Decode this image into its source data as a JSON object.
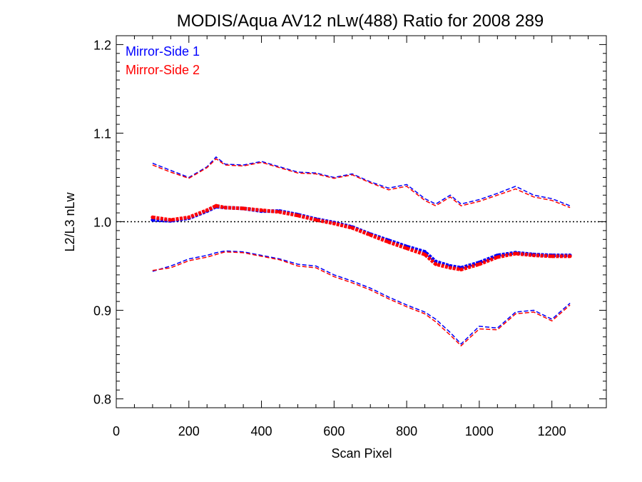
{
  "chart_data": {
    "type": "line",
    "title": "MODIS/Aqua AV12 nLw(488) Ratio for 2008 289",
    "xlabel": "Scan Pixel",
    "ylabel": "L2/L3 nLw",
    "xlim": [
      0,
      1350
    ],
    "ylim": [
      0.79,
      1.21
    ],
    "xticks": [
      0,
      200,
      400,
      600,
      800,
      1000,
      1200
    ],
    "xtick_labels": [
      "0",
      "200",
      "400",
      "600",
      "800",
      "1000",
      "1200"
    ],
    "yticks": [
      0.8,
      0.9,
      1.0,
      1.1,
      1.2
    ],
    "ytick_labels": [
      "0.8",
      "0.9",
      "1.0",
      "1.1",
      "1.2"
    ],
    "reference_line": 1.0,
    "legend": {
      "placement": "top-left",
      "entries": [
        "Mirror-Side 1",
        "Mirror-Side 2"
      ]
    },
    "colors": {
      "mirror_side_1": "#0000ff",
      "mirror_side_2": "#ff0000"
    },
    "x": [
      100,
      150,
      200,
      250,
      275,
      300,
      350,
      400,
      450,
      500,
      550,
      600,
      650,
      700,
      750,
      800,
      850,
      880,
      920,
      950,
      1000,
      1050,
      1100,
      1150,
      1200,
      1250
    ],
    "series": [
      {
        "name": "Mirror-Side 1",
        "role": "mean",
        "values": [
          1.002,
          1.001,
          1.004,
          1.012,
          1.017,
          1.016,
          1.015,
          1.012,
          1.012,
          1.008,
          1.003,
          0.999,
          0.994,
          0.986,
          0.979,
          0.972,
          0.966,
          0.955,
          0.95,
          0.948,
          0.954,
          0.962,
          0.965,
          0.963,
          0.962,
          0.962
        ]
      },
      {
        "name": "Mirror-Side 2",
        "role": "mean",
        "values": [
          1.005,
          1.002,
          1.005,
          1.013,
          1.018,
          1.016,
          1.015,
          1.013,
          1.011,
          1.007,
          1.002,
          0.998,
          0.993,
          0.985,
          0.977,
          0.97,
          0.963,
          0.952,
          0.948,
          0.946,
          0.952,
          0.96,
          0.964,
          0.962,
          0.961,
          0.961
        ]
      },
      {
        "name": "Mirror-Side 1",
        "role": "upper",
        "values": [
          1.066,
          1.058,
          1.05,
          1.062,
          1.073,
          1.065,
          1.064,
          1.068,
          1.062,
          1.056,
          1.055,
          1.05,
          1.054,
          1.045,
          1.038,
          1.042,
          1.026,
          1.02,
          1.03,
          1.02,
          1.025,
          1.032,
          1.04,
          1.03,
          1.026,
          1.018
        ]
      },
      {
        "name": "Mirror-Side 2",
        "role": "upper",
        "values": [
          1.064,
          1.056,
          1.049,
          1.061,
          1.071,
          1.064,
          1.063,
          1.067,
          1.061,
          1.055,
          1.054,
          1.049,
          1.053,
          1.044,
          1.036,
          1.04,
          1.024,
          1.018,
          1.028,
          1.018,
          1.023,
          1.03,
          1.037,
          1.028,
          1.024,
          1.016
        ]
      },
      {
        "name": "Mirror-Side 1",
        "role": "lower",
        "values": [
          0.944,
          0.95,
          0.958,
          0.962,
          0.965,
          0.967,
          0.966,
          0.962,
          0.958,
          0.952,
          0.95,
          0.94,
          0.933,
          0.925,
          0.915,
          0.906,
          0.898,
          0.89,
          0.875,
          0.862,
          0.882,
          0.88,
          0.898,
          0.9,
          0.89,
          0.908
        ]
      },
      {
        "name": "Mirror-Side 2",
        "role": "lower",
        "values": [
          0.945,
          0.948,
          0.956,
          0.96,
          0.963,
          0.966,
          0.965,
          0.961,
          0.957,
          0.95,
          0.948,
          0.938,
          0.931,
          0.923,
          0.913,
          0.904,
          0.896,
          0.887,
          0.872,
          0.86,
          0.879,
          0.878,
          0.896,
          0.898,
          0.888,
          0.906
        ]
      }
    ],
    "grid": false
  }
}
